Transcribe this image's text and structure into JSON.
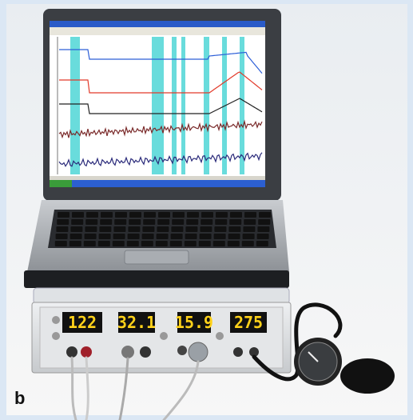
{
  "panel_label": "b",
  "displays": [
    "122",
    "32.1",
    "15.9",
    "275"
  ]
}
